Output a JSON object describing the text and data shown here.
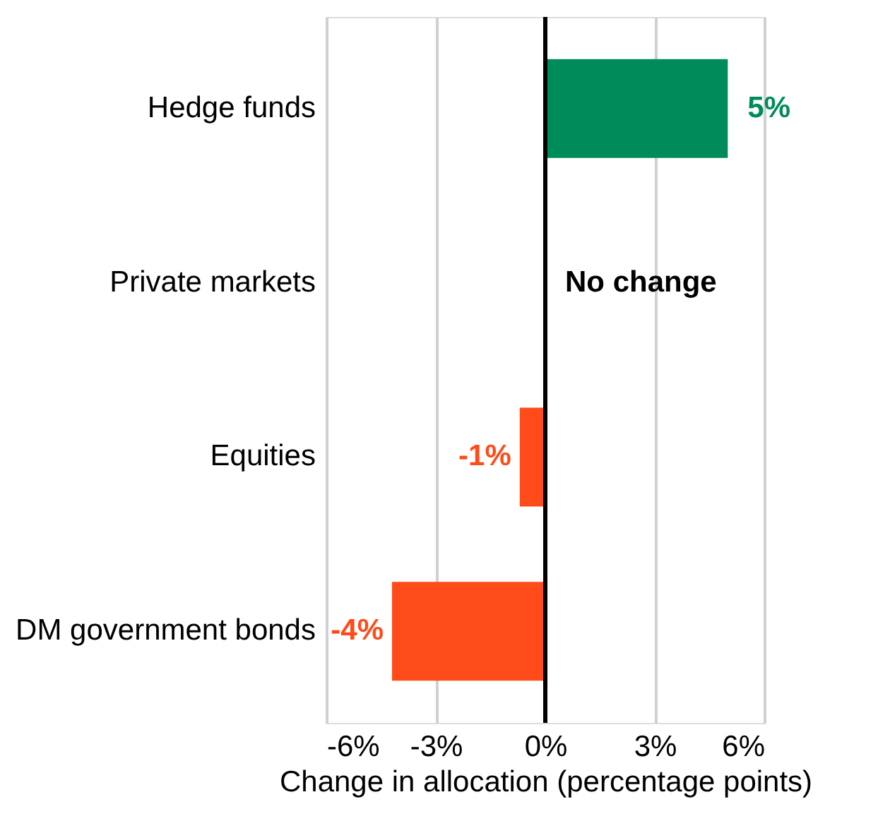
{
  "chart_data": {
    "type": "bar",
    "orientation": "horizontal",
    "xlabel": "Change in allocation (percentage points)",
    "categories": [
      "Hedge funds",
      "Private markets",
      "Equities",
      "DM government bonds"
    ],
    "values": [
      5,
      0,
      -0.7,
      -4.2
    ],
    "colors": [
      "#008c5a",
      "#000000",
      "#ff4b19",
      "#ff4b19"
    ],
    "value_labels": [
      "5%",
      "No change",
      "-1%",
      "-4%"
    ],
    "xlim": [
      -6,
      6
    ],
    "xticks": [
      {
        "value": -6,
        "label": "-6%"
      },
      {
        "value": -3,
        "label": "-3%"
      },
      {
        "value": 0,
        "label": "0%"
      },
      {
        "value": 3,
        "label": "3%"
      },
      {
        "value": 6,
        "label": "6%"
      }
    ],
    "ref_lines": [
      {
        "axis": "x",
        "value": 0,
        "color": "#000000"
      }
    ],
    "grid": "x"
  }
}
